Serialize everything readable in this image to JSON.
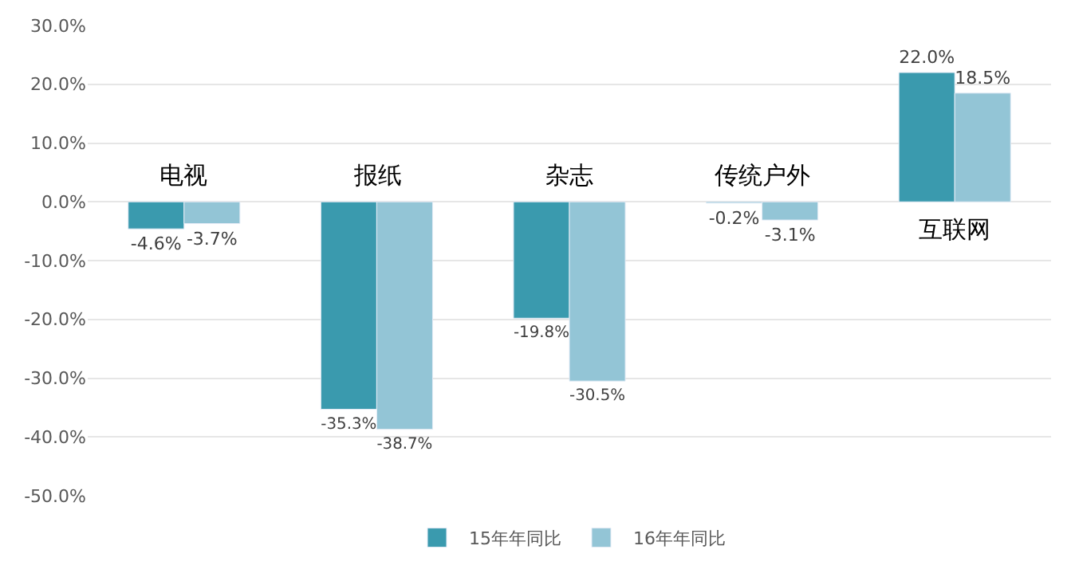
{
  "chart_data": {
    "type": "bar",
    "categories": [
      "电视",
      "报纸",
      "杂志",
      "传统户外",
      "互联网"
    ],
    "series": [
      {
        "name": "15年年同比",
        "color": "#3a9aae",
        "values": [
          -4.6,
          -35.3,
          -19.8,
          -0.2,
          22.0
        ],
        "value_labels": [
          "-4.6%",
          "-35.3%",
          "-19.8%",
          "-0.2%",
          "22.0%"
        ]
      },
      {
        "name": "16年年同比",
        "color": "#93c5d6",
        "values": [
          -3.7,
          -38.7,
          -30.5,
          -3.1,
          18.5
        ],
        "value_labels": [
          "-3.7%",
          "-38.7%",
          "-30.5%",
          "-3.1%",
          "18.5%"
        ]
      }
    ],
    "ylim": [
      -50,
      30
    ],
    "yticks": [
      {
        "value": -50,
        "label": "-50.0%"
      },
      {
        "value": -40,
        "label": "-40.0%"
      },
      {
        "value": -30,
        "label": "-30.0%"
      },
      {
        "value": -20,
        "label": "-20.0%"
      },
      {
        "value": -10,
        "label": "-10.0%"
      },
      {
        "value": 0,
        "label": "0.0%"
      },
      {
        "value": 10,
        "label": "10.0%"
      },
      {
        "value": 20,
        "label": "20.0%"
      },
      {
        "value": 30,
        "label": "30.0%"
      }
    ],
    "grid": "y",
    "legend": "bottom",
    "tick_labels": "y"
  }
}
